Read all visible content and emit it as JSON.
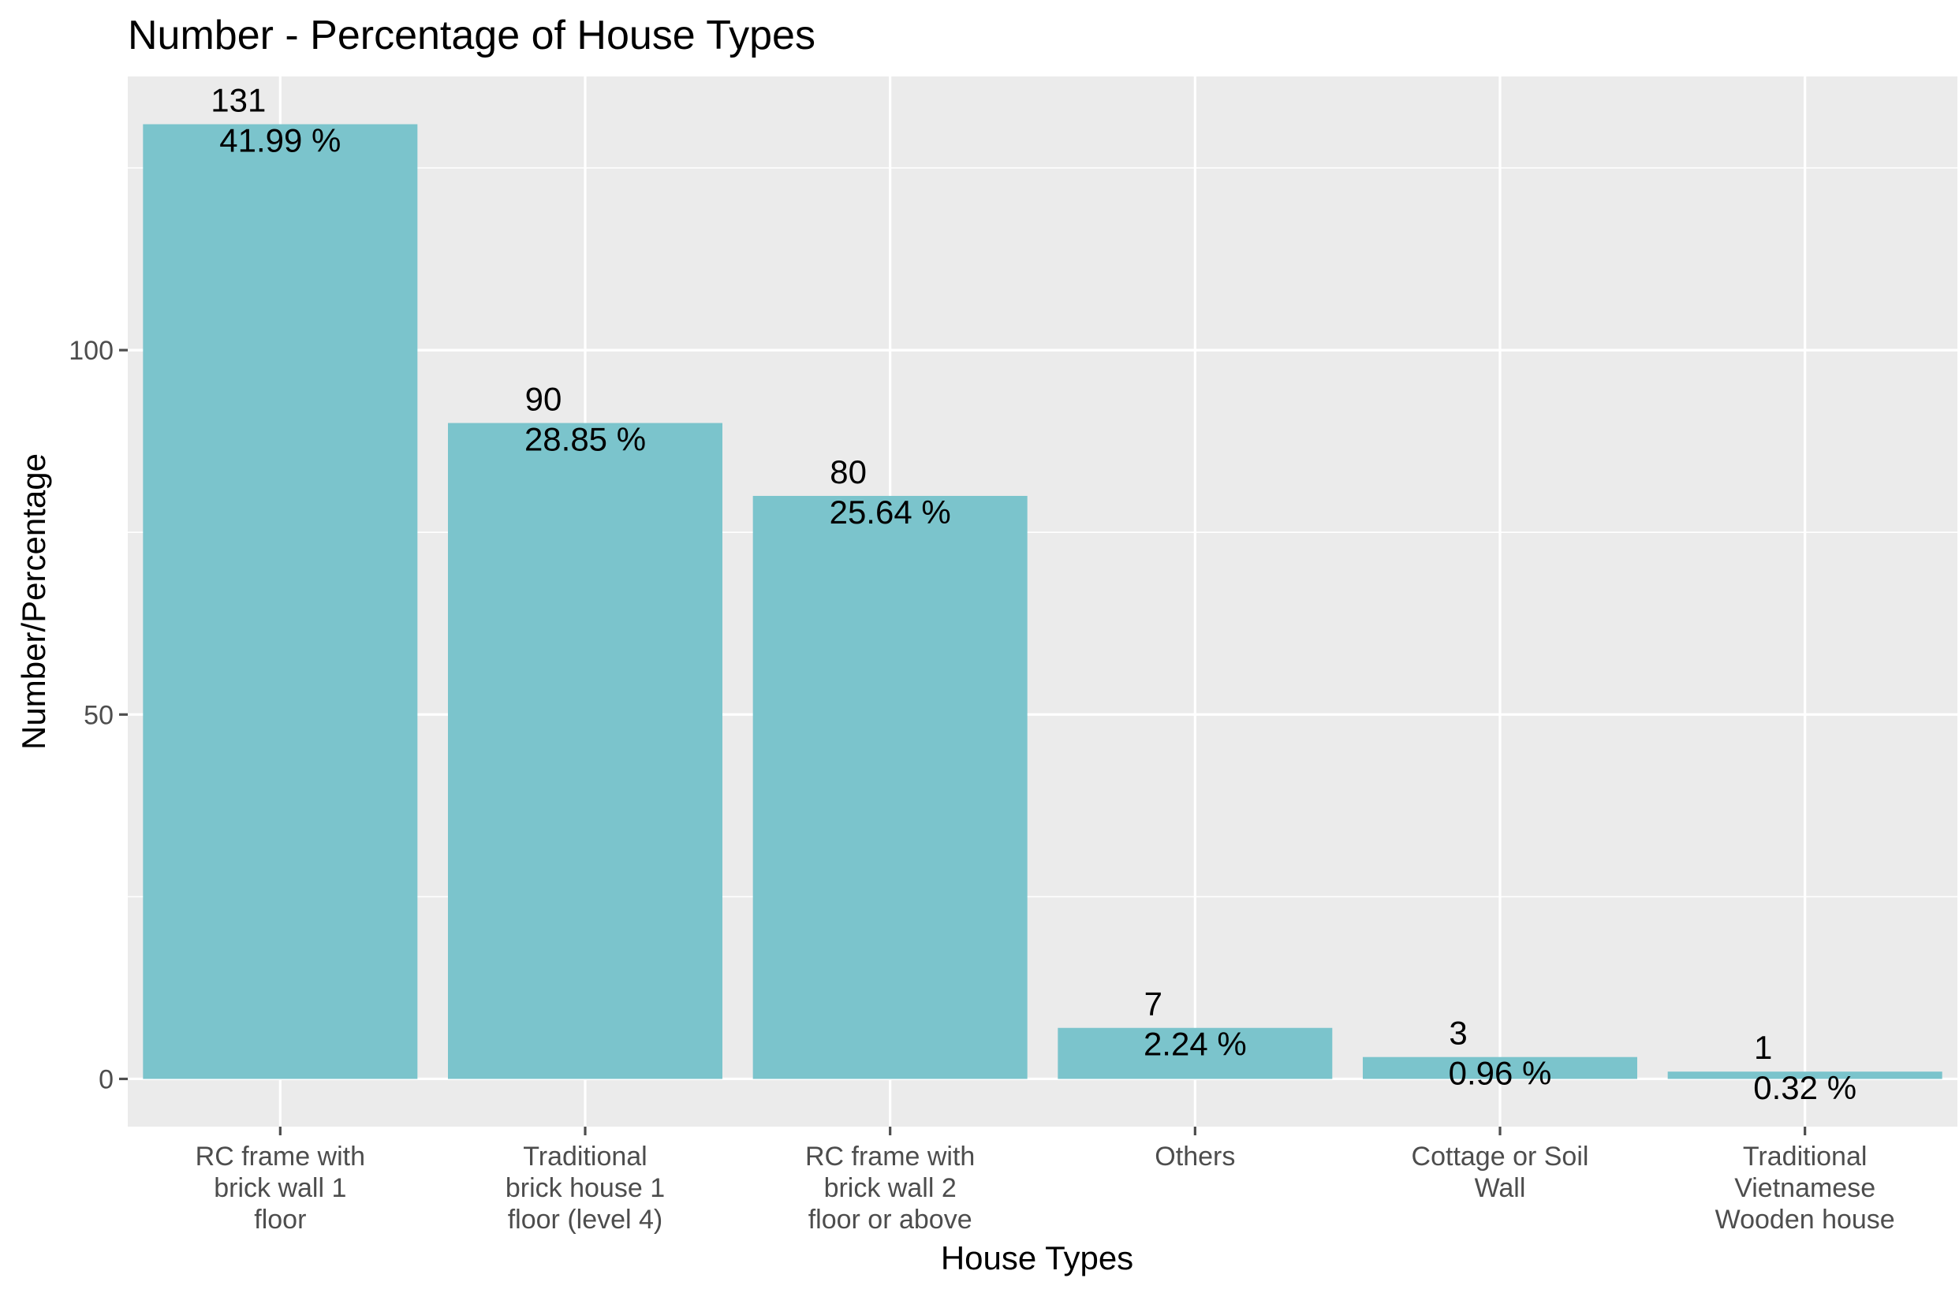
{
  "chart_data": {
    "type": "bar",
    "title": "Number - Percentage of House Types",
    "xlabel": "House Types",
    "ylabel": "Number/Percentage",
    "categories": [
      [
        "RC frame with",
        "brick wall 1",
        "floor"
      ],
      [
        "Traditional",
        "brick house 1",
        "floor (level 4)"
      ],
      [
        "RC frame with",
        "brick wall 2",
        "floor or above"
      ],
      [
        "Others"
      ],
      [
        "Cottage or Soil",
        "Wall"
      ],
      [
        "Traditional",
        "Vietnamese",
        "Wooden house"
      ]
    ],
    "values": [
      131,
      90,
      80,
      7,
      3,
      1
    ],
    "percent_labels": [
      "41.99 %",
      "28.85 %",
      "25.64 %",
      "2.24 %",
      "0.96 %",
      "0.32 %"
    ],
    "ylim": [
      -6.55,
      137.55
    ],
    "yticks": [
      0,
      50,
      100
    ],
    "ytick_labels": [
      "0",
      "50",
      "100"
    ],
    "grid": true,
    "colors": {
      "bar": "#7bc4cc",
      "panel": "#ebebeb",
      "grid": "#ffffff",
      "tick": "#4d4d4d"
    }
  }
}
